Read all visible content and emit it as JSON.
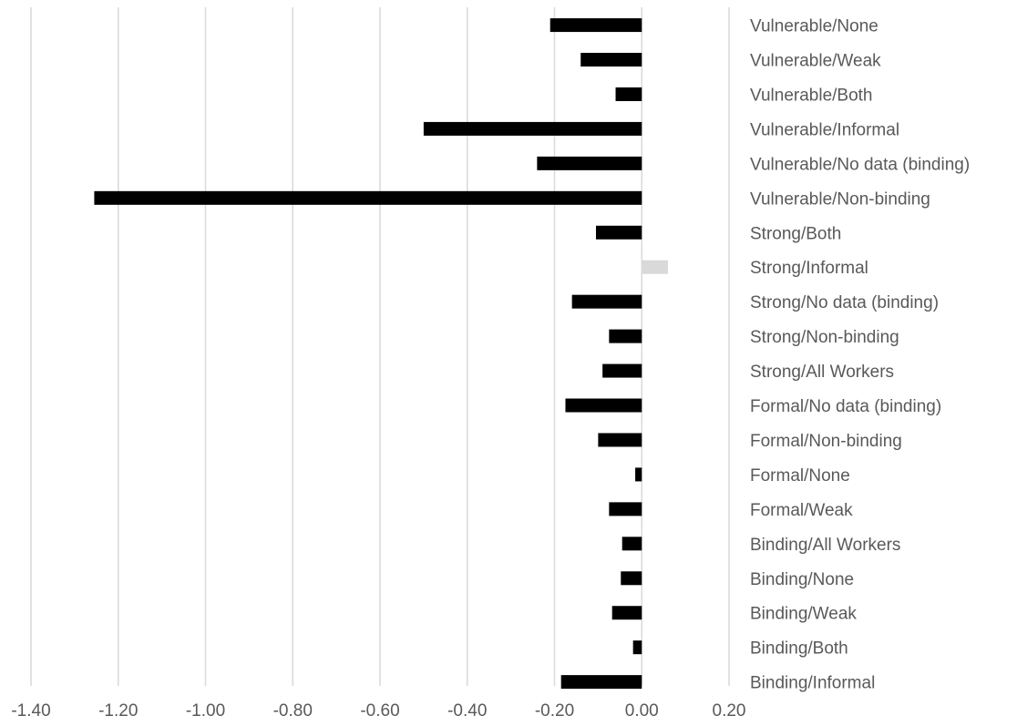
{
  "chart_data": {
    "type": "bar",
    "orientation": "horizontal",
    "categories": [
      "Vulnerable/None",
      "Vulnerable/Weak",
      "Vulnerable/Both",
      "Vulnerable/Informal",
      "Vulnerable/No data (binding)",
      "Vulnerable/Non-binding",
      "Strong/Both",
      "Strong/Informal",
      "Strong/No data (binding)",
      "Strong/Non-binding",
      "Strong/All Workers",
      "Formal/No data (binding)",
      "Formal/Non-binding",
      "Formal/None",
      "Formal/Weak",
      "Binding/All Workers",
      "Binding/None",
      "Binding/Weak",
      "Binding/Both",
      "Binding/Informal"
    ],
    "values": [
      -0.21,
      -0.14,
      -0.06,
      -0.5,
      -0.24,
      -1.255,
      -0.105,
      0.06,
      -0.16,
      -0.075,
      -0.09,
      -0.175,
      -0.1,
      -0.015,
      -0.075,
      -0.045,
      -0.048,
      -0.068,
      -0.02,
      -0.185
    ],
    "bar_colors": [
      "#000000",
      "#000000",
      "#000000",
      "#000000",
      "#000000",
      "#000000",
      "#000000",
      "#d9d9d9",
      "#000000",
      "#000000",
      "#000000",
      "#000000",
      "#000000",
      "#000000",
      "#000000",
      "#000000",
      "#000000",
      "#000000",
      "#000000",
      "#000000"
    ],
    "xlim": [
      -1.4,
      0.2
    ],
    "xticks": [
      "-1.40",
      "-1.20",
      "-1.00",
      "-0.80",
      "-0.60",
      "-0.40",
      "-0.20",
      "0.00",
      "0.20"
    ],
    "grid": true,
    "gridline_color": "#d9d9d9",
    "title": "",
    "xlabel": "",
    "ylabel": ""
  }
}
